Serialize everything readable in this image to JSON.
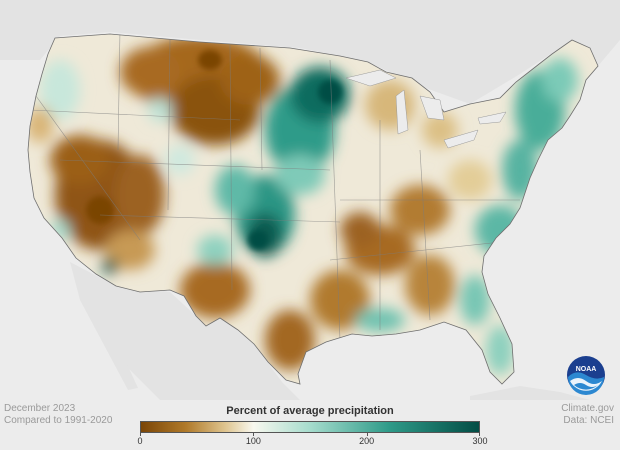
{
  "map": {
    "title": "Percent of average precipitation",
    "date": "December 2023",
    "baseline": "Compared to 1991-2020",
    "credit": "Climate.gov",
    "source": "Data: NCEI",
    "logo_text": "NOAA",
    "legend": {
      "ticks": [
        "0",
        "100",
        "200",
        "300"
      ],
      "tick_values": [
        0,
        100,
        200,
        300
      ],
      "min": 0,
      "max": 300,
      "stops": [
        {
          "value": 0,
          "color": "#7a4506"
        },
        {
          "value": 40,
          "color": "#b07a2a"
        },
        {
          "value": 75,
          "color": "#dfc590"
        },
        {
          "value": 100,
          "color": "#f8f8ef"
        },
        {
          "value": 150,
          "color": "#a6dccd"
        },
        {
          "value": 220,
          "color": "#2f9b89"
        },
        {
          "value": 300,
          "color": "#034d45"
        }
      ]
    }
  }
}
